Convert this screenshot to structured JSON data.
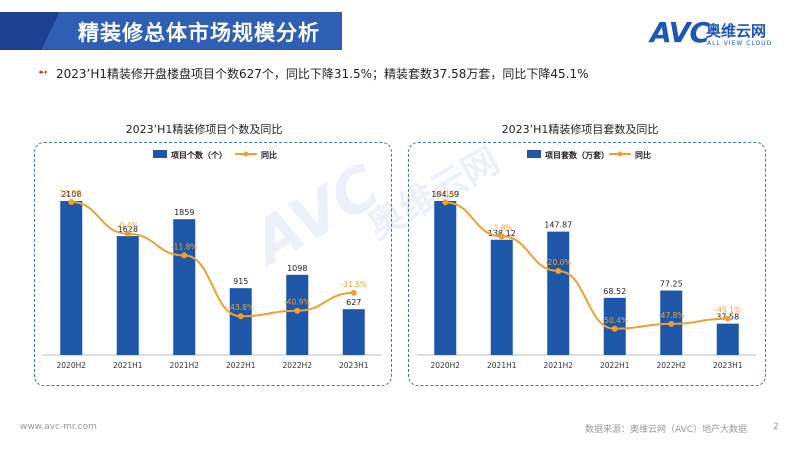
{
  "header": {
    "title": "精装修总体市场规模分析",
    "logo_mark": "AVC",
    "logo_cn": "奥维云网",
    "logo_en": "ALL VIEW CLOUD"
  },
  "summary": {
    "bullet": "➻",
    "text": "2023’H1精装修开盘楼盘项目个数627个，同比下降31.5%；精装套数37.58万套，同比下降45.1%"
  },
  "watermark": {
    "mark": "AVC",
    "cn": "奥维云网"
  },
  "footer": {
    "website": "www.avc-mr.com",
    "source": "数据来源：奥维云网（AVC）地产大数据",
    "page": "2"
  },
  "colors": {
    "bar": "#1e56a8",
    "line": "#f0a030",
    "title_bg": "#2e5fb5"
  },
  "chart_data": [
    {
      "type": "bar",
      "title": "2023’H1精装修项目个数及同比",
      "categories": [
        "2020H2",
        "2021H1",
        "2021H2",
        "2022H1",
        "2022H2",
        "2023H1"
      ],
      "series": [
        {
          "name": "项目个数（个）",
          "type": "bar",
          "values": [
            2108,
            1628,
            1859,
            915,
            1098,
            627
          ]
        },
        {
          "name": "同比",
          "type": "line",
          "values": [
            16.3,
            -0.4,
            -11.8,
            -43.8,
            -40.9,
            -31.5
          ],
          "labels": [
            "16.3%",
            "-0.4%",
            "-11.8%",
            "-43.8%",
            "-40.9%",
            "-31.5%"
          ]
        }
      ],
      "bar_labels": [
        "2108",
        "1628",
        "1859",
        "915",
        "1098",
        "627"
      ],
      "legend_position": "top"
    },
    {
      "type": "bar",
      "title": "2023’H1精装修项目套数及同比",
      "categories": [
        "2020H2",
        "2021H1",
        "2021H2",
        "2022H1",
        "2022H2",
        "2023H1"
      ],
      "series": [
        {
          "name": "项目套数（万套）",
          "type": "bar",
          "values": [
            184.59,
            138.12,
            147.87,
            68.52,
            77.25,
            37.58
          ]
        },
        {
          "name": "同比",
          "type": "line",
          "values": [
            16.1,
            -1.8,
            -20.0,
            -50.4,
            -47.8,
            -45.1
          ],
          "labels": [
            "16.1%",
            "-1.8%",
            "-20.0%",
            "-50.4%",
            "-47.8%",
            "-45.1%"
          ]
        }
      ],
      "bar_labels": [
        "184.59",
        "138.12",
        "147.87",
        "68.52",
        "77.25",
        "37.58"
      ],
      "legend_position": "top"
    }
  ]
}
